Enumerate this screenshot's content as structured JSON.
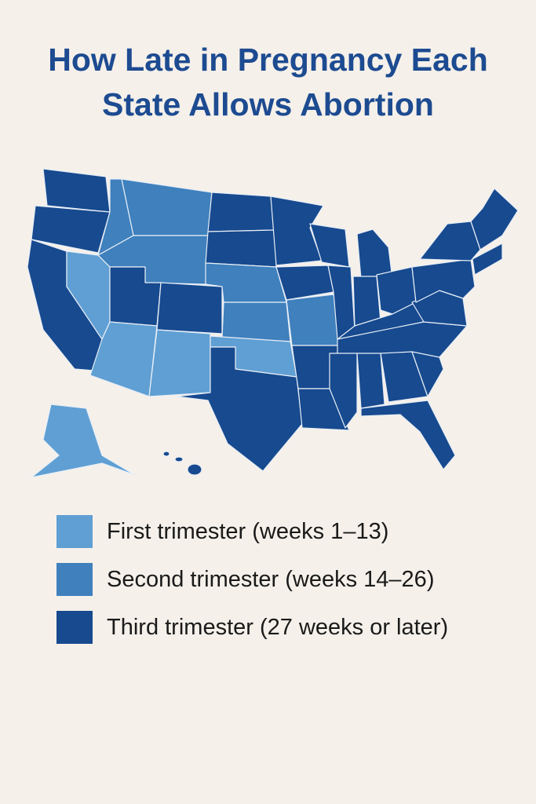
{
  "title": "How Late in Pregnancy Each State Allows Abortion",
  "legend": {
    "items": [
      {
        "label": "First trimester (weeks 1–13)",
        "color": "#5f9fd3"
      },
      {
        "label": "Second trimester (weeks 14–26)",
        "color": "#3f80bd"
      },
      {
        "label": "Third trimester (27 weeks or later)",
        "color": "#174a8f"
      }
    ]
  }
}
